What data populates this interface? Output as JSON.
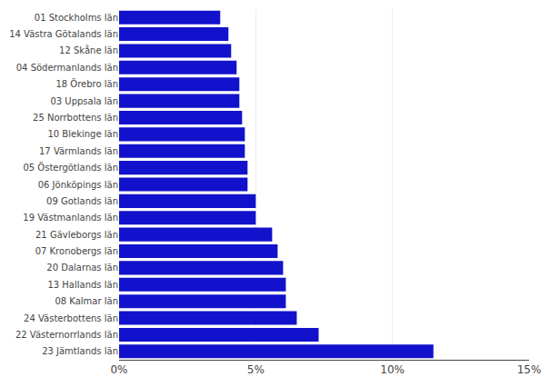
{
  "chart_data": {
    "type": "bar",
    "orientation": "horizontal",
    "categories": [
      "23 Jämtlands län",
      "22 Västernorrlands län",
      "24 Västerbottens län",
      "08 Kalmar län",
      "13 Hallands län",
      "20 Dalarnas län",
      "07 Kronobergs län",
      "21 Gävleborgs län",
      "19 Västmanlands län",
      "09 Gotlands län",
      "06 Jönköpings län",
      "05 Östergötlands län",
      "17 Värmlands län",
      "10 Blekinge län",
      "25 Norrbottens län",
      "03 Uppsala län",
      "18 Örebro län",
      "04 Södermanlands län",
      "12 Skåne län",
      "14 Västra Götalands län",
      "01 Stockholms län"
    ],
    "values": [
      11.5,
      7.3,
      6.5,
      6.1,
      6.1,
      6.0,
      5.8,
      5.6,
      5.0,
      5.0,
      4.7,
      4.7,
      4.6,
      4.6,
      4.5,
      4.4,
      4.4,
      4.3,
      4.1,
      4.0,
      3.7
    ],
    "color": "#1212CC",
    "xlim": [
      0,
      15
    ],
    "xticks": [
      {
        "value": 0,
        "label": "0%"
      },
      {
        "value": 5,
        "label": "5%"
      },
      {
        "value": 10,
        "label": "10%"
      },
      {
        "value": 15,
        "label": "15%"
      }
    ],
    "grid": true
  }
}
